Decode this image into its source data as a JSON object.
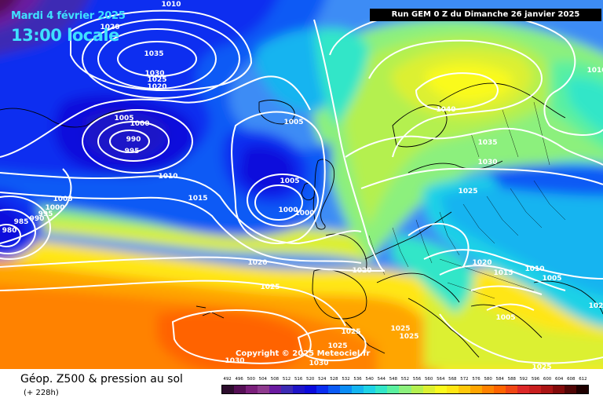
{
  "header": {
    "date": "Mardi 4 février 2025",
    "local_time": "13:00 locale",
    "run_info": "Run GEM 0 Z du Dimanche 26 janvier 2025"
  },
  "copyright": "Copyright © 2025 Meteociel.fr",
  "footer": {
    "title": "Géop. Z500 & pression au sol",
    "lead_time": "(+ 228h)"
  },
  "legend": {
    "values": [
      "492",
      "496",
      "500",
      "504",
      "508",
      "512",
      "516",
      "520",
      "524",
      "528",
      "532",
      "536",
      "540",
      "544",
      "548",
      "552",
      "556",
      "560",
      "564",
      "568",
      "572",
      "576",
      "580",
      "584",
      "588",
      "592",
      "596",
      "600",
      "604",
      "608",
      "612"
    ],
    "colors": [
      "#2d0d2d",
      "#550f55",
      "#7a1f7a",
      "#8e3a8e",
      "#6a1aa0",
      "#3c2ab4",
      "#1e14c8",
      "#0a0adc",
      "#0a2df0",
      "#0a5af5",
      "#0a8cf5",
      "#14b4f0",
      "#1ed2e6",
      "#32e6c8",
      "#5af0a0",
      "#8cf07d",
      "#b4f050",
      "#dcf032",
      "#fafa1e",
      "#ffe614",
      "#ffc80a",
      "#ffa500",
      "#ff8200",
      "#ff6400",
      "#f04614",
      "#dc2828",
      "#c81e1e",
      "#aa1414",
      "#820a0a",
      "#500505",
      "#1e0000"
    ]
  },
  "isobars": {
    "labels": [
      "1010",
      "1020",
      "1035",
      "1030",
      "1025",
      "1020",
      "1005",
      "1000",
      "990",
      "995",
      "1005",
      "1010",
      "1015",
      "1005",
      "1000",
      "1000",
      "1005",
      "1000",
      "995",
      "990",
      "985",
      "980",
      "1020",
      "1025",
      "1030",
      "1040",
      "1035",
      "1030",
      "1025",
      "1020",
      "1020",
      "1015",
      "1010",
      "1005",
      "1005",
      "1025",
      "1025",
      "1025",
      "1025",
      "1030",
      "1025",
      "1010",
      "102",
      "101"
    ]
  }
}
